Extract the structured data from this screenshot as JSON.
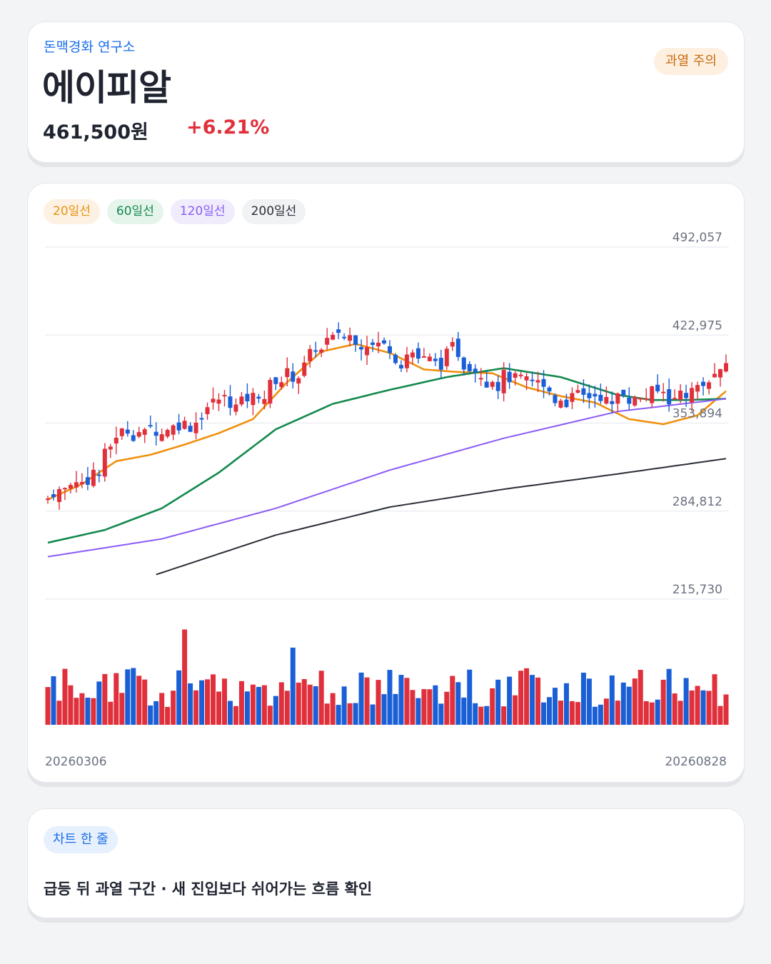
{
  "header": {
    "brand": "돈맥경화 연구소",
    "stock_name": "에이피알",
    "price": "461,500원",
    "change": "+6.21%",
    "badge": "과열 주의"
  },
  "legend": [
    "20일선",
    "60일선",
    "120일선",
    "200일선"
  ],
  "colors": {
    "up": "#e0303b",
    "down": "#1a5fd6",
    "ma20": "#f0900e",
    "ma60": "#13894e",
    "ma120": "#8b5cf6",
    "ma200": "#2b2f38"
  },
  "chart_data": {
    "type": "candlestick",
    "x_start": "20260306",
    "x_end": "20260828",
    "y_ticks": [
      "492,057",
      "422,975",
      "353,894",
      "284,812",
      "215,730"
    ],
    "ylim": [
      215730,
      492057
    ],
    "grid": true,
    "series": [
      {
        "name": "20일선",
        "x": [
          0,
          6,
          12,
          18,
          24,
          30,
          36,
          42,
          48,
          54,
          60,
          66,
          72,
          78,
          84,
          90,
          96,
          102,
          108,
          114,
          119
        ],
        "values": [
          294000,
          306000,
          324000,
          329000,
          337000,
          346000,
          357000,
          386000,
          410000,
          416000,
          409000,
          396000,
          394000,
          393000,
          382000,
          375000,
          370000,
          357000,
          353000,
          360000,
          379000
        ]
      },
      {
        "name": "60일선",
        "x": [
          0,
          10,
          20,
          30,
          40,
          50,
          60,
          70,
          80,
          90,
          100,
          106,
          112,
          119
        ],
        "values": [
          260000,
          270000,
          287000,
          315000,
          349000,
          369000,
          380000,
          390000,
          397000,
          390000,
          376000,
          372000,
          372000,
          373000
        ]
      },
      {
        "name": "120일선",
        "x": [
          0,
          20,
          40,
          60,
          80,
          100,
          119
        ],
        "values": [
          249000,
          263000,
          287000,
          317000,
          342000,
          363000,
          373000
        ]
      },
      {
        "name": "200일선",
        "x": [
          19,
          40,
          60,
          80,
          100,
          119
        ],
        "values": [
          235000,
          266000,
          288000,
          302000,
          314000,
          326000
        ]
      }
    ],
    "volume_range": [
      0,
      100
    ]
  },
  "note": {
    "badge": "차트 한 줄",
    "text": "급등 뒤 과열 구간 · 새 진입보다 쉬어가는 흐름 확인"
  }
}
